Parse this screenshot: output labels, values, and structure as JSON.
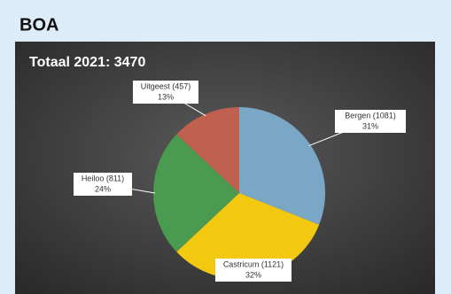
{
  "header": {
    "title": "BOA"
  },
  "chart_data": {
    "type": "pie",
    "title": "Totaal 2021: 3470",
    "categories": [
      "Bergen (1081)",
      "Castricum (1121)",
      "Heiloo (811)",
      "Uitgeest (457)"
    ],
    "values": [
      31,
      32,
      24,
      13
    ],
    "value_labels": [
      "31%",
      "32%",
      "24%",
      "13%"
    ],
    "colors": [
      "#7ba7c7",
      "#f2c811",
      "#4a9a50",
      "#c0604f"
    ]
  }
}
